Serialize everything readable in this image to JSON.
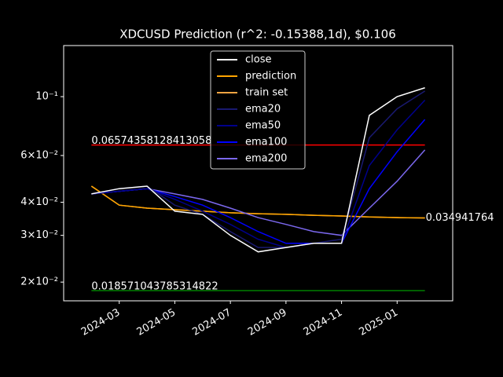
{
  "chart_data": {
    "type": "line",
    "title": "XDCUSD Prediction (r^2: -0.15388,1d), $0.106",
    "x": [
      "2024-02",
      "2024-03",
      "2024-04",
      "2024-05",
      "2024-06",
      "2024-07",
      "2024-08",
      "2024-09",
      "2024-10",
      "2024-11",
      "2024-12",
      "2025-01",
      "2025-02"
    ],
    "series": [
      {
        "name": "close",
        "color": "#ffffff",
        "values": [
          0.043,
          0.045,
          0.046,
          0.037,
          0.036,
          0.03,
          0.026,
          0.027,
          0.028,
          0.028,
          0.085,
          0.1,
          0.108
        ]
      },
      {
        "name": "prediction",
        "color": "#ffa500",
        "values": [
          0.046,
          0.039,
          0.038,
          0.0375,
          0.037,
          0.0365,
          0.0362,
          0.036,
          0.0357,
          0.0355,
          0.0352,
          0.035,
          0.0349
        ]
      },
      {
        "name": "train set",
        "color": "#f5a442",
        "values": [
          0.046,
          0.039,
          0.038,
          0.0375,
          0.037,
          0.0365,
          0.0362,
          0.036,
          0.0357,
          0.0355,
          0.0352,
          0.035,
          0.0349
        ]
      },
      {
        "name": "ema20",
        "color": "#191970",
        "values": [
          0.043,
          0.045,
          0.046,
          0.039,
          0.036,
          0.031,
          0.027,
          0.027,
          0.028,
          0.029,
          0.07,
          0.09,
          0.105
        ]
      },
      {
        "name": "ema50",
        "color": "#00008b",
        "values": [
          0.043,
          0.044,
          0.045,
          0.041,
          0.037,
          0.033,
          0.029,
          0.027,
          0.028,
          0.028,
          0.055,
          0.075,
          0.097
        ]
      },
      {
        "name": "ema100",
        "color": "#0000ff",
        "values": [
          0.043,
          0.044,
          0.045,
          0.042,
          0.039,
          0.035,
          0.031,
          0.028,
          0.028,
          0.028,
          0.045,
          0.062,
          0.082
        ]
      },
      {
        "name": "ema200",
        "color": "#7b68ee",
        "values": [
          0.043,
          0.044,
          0.045,
          0.043,
          0.041,
          0.038,
          0.035,
          0.033,
          0.031,
          0.03,
          0.038,
          0.048,
          0.063
        ]
      }
    ],
    "hlines": [
      {
        "value": 0.06574358128413058,
        "color": "#ff0000"
      },
      {
        "value": 0.018571043785314822,
        "color": "#008000"
      }
    ],
    "last_prediction": 0.034941764,
    "xlim": [
      "2024-01",
      "2025-03"
    ],
    "xticks": [
      "2024-03",
      "2024-05",
      "2024-07",
      "2024-09",
      "2024-11",
      "2025-01"
    ],
    "ylim": [
      0.017,
      0.1558
    ],
    "log_y": true,
    "yticks": [
      {
        "value": 0.1,
        "label": "10⁻¹"
      },
      {
        "value": 0.06,
        "label": "6×10⁻²"
      },
      {
        "value": 0.04,
        "label": "4×10⁻²"
      },
      {
        "value": 0.03,
        "label": "3×10⁻²"
      },
      {
        "value": 0.02,
        "label": "2×10⁻²"
      }
    ],
    "legend": "upper center"
  }
}
